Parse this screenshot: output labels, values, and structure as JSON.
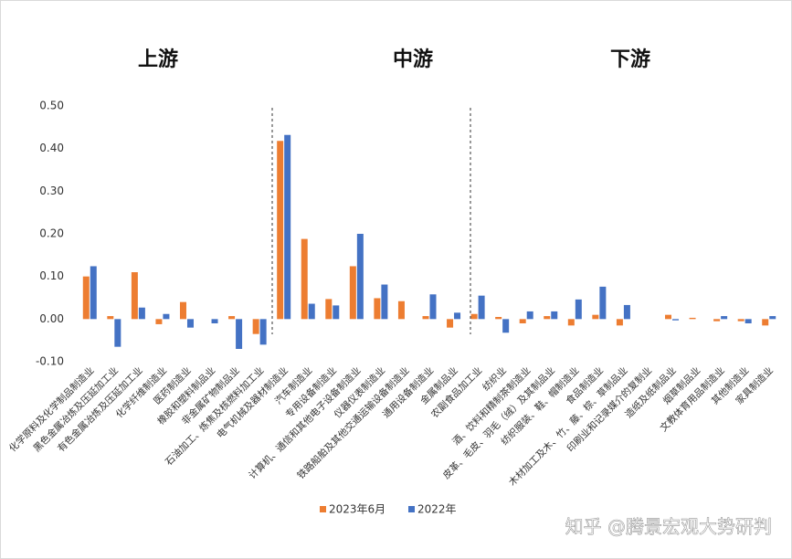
{
  "chart_data": {
    "type": "bar",
    "sections": [
      "上游",
      "中游",
      "下游"
    ],
    "categories": [
      "化学原料及化学制品制造业",
      "黑色金属冶炼及压延加工业",
      "有色金属冶炼及压延加工业",
      "化学纤维制造业",
      "医药制造业",
      "橡胶和塑料制品业",
      "非金属矿物制品业",
      "石油加工、炼焦及核燃料加工业",
      "电气机械及器材制造业",
      "汽车制造业",
      "专用设备制造业",
      "计算机、通信和其他电子设备制造业",
      "仪器仪表制造业",
      "铁路船舶及其他交通运输设备制造业",
      "通用设备制造业",
      "金属制品业",
      "农副食品加工业",
      "纺织业",
      "酒、饮料和精制茶制造业",
      "皮革、毛皮、羽毛（绒）及其制品业",
      "纺织服装、鞋、帽制造业",
      "食品制造业",
      "木材加工及木、竹、藤、棕、草制品业",
      "印刷业和记录媒介的复制业",
      "造纸及纸制品业",
      "烟草制品业",
      "文教体育用品制造业",
      "其他制造业",
      "家具制造业"
    ],
    "series": [
      {
        "name": "2023年6月",
        "color": "#ED7D31",
        "values": [
          0.1,
          0.007,
          0.11,
          -0.012,
          0.04,
          0,
          0.007,
          -0.035,
          0.418,
          0.188,
          0.047,
          0.124,
          0.049,
          0.042,
          0.007,
          -0.02,
          0.012,
          0.005,
          -0.01,
          0.007,
          -0.015,
          0.01,
          -0.015,
          0,
          0.01,
          0.003,
          -0.005,
          -0.005,
          -0.015
        ]
      },
      {
        "name": "2022年",
        "color": "#4472C4",
        "values": [
          0.124,
          -0.065,
          0.027,
          0.012,
          -0.02,
          -0.01,
          -0.07,
          -0.06,
          0.432,
          0.036,
          0.032,
          0.2,
          0.081,
          0,
          0.058,
          0.015,
          0.055,
          -0.032,
          0.018,
          0.018,
          0.046,
          0.076,
          0.033,
          0,
          -0.003,
          0,
          0.007,
          -0.01,
          0.007
        ]
      }
    ],
    "ylim": [
      -0.1,
      0.5
    ],
    "yticks": [
      {
        "value": -0.1,
        "label": "-0.10"
      },
      {
        "value": 0,
        "label": "0.00"
      },
      {
        "value": 0.1,
        "label": "0.10"
      },
      {
        "value": 0.2,
        "label": "0.20"
      },
      {
        "value": 0.3,
        "label": "0.30"
      },
      {
        "value": 0.4,
        "label": "0.40"
      },
      {
        "value": 0.5,
        "label": "0.50"
      }
    ],
    "grid": false,
    "legend": "bottom"
  },
  "watermark": "知乎 @腾景宏观大势研判"
}
